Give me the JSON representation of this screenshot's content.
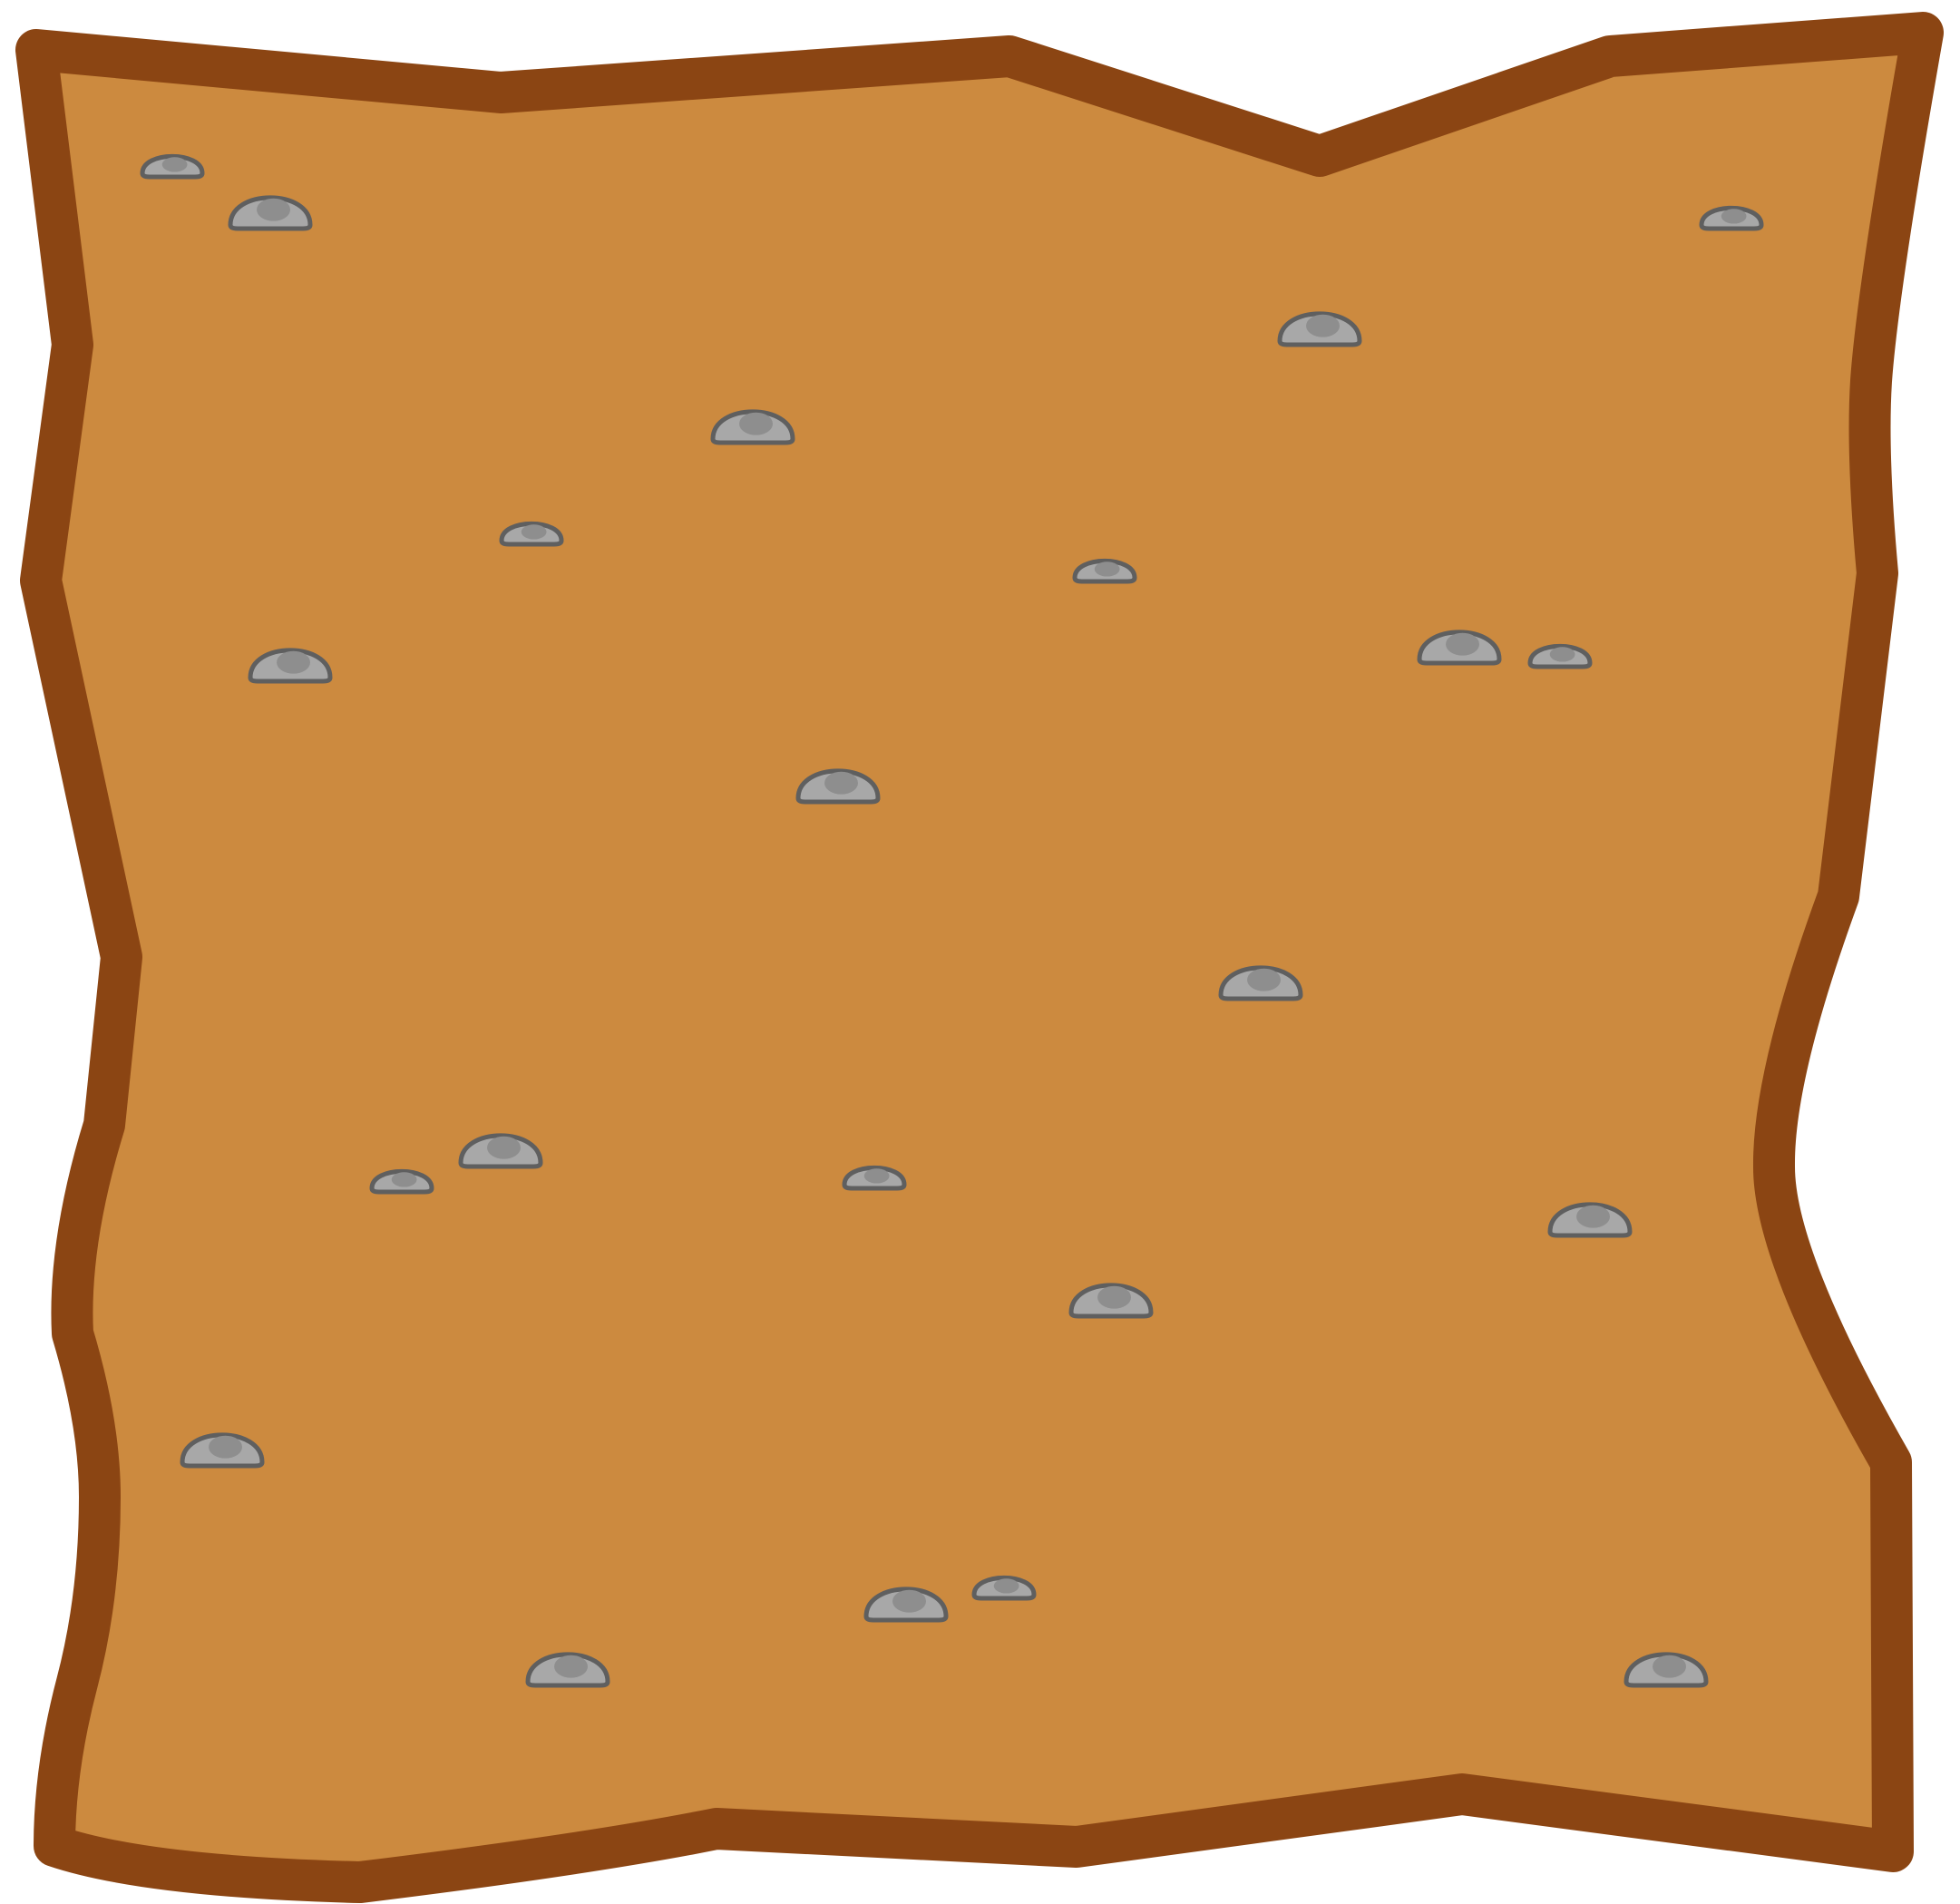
{
  "tile": {
    "kind": "dirt-ground-tile",
    "fill_color": "#CC8A3F",
    "outline_color": "#8B4513"
  },
  "pebble_style": {
    "fill_color": "#A8A8A8",
    "highlight_color": "#8E8E8E",
    "outline_color": "#5F5F5F"
  },
  "pebbles": [
    {
      "size": "small"
    },
    {
      "size": "large"
    },
    {
      "size": "small"
    },
    {
      "size": "large"
    },
    {
      "size": "large"
    },
    {
      "size": "small"
    },
    {
      "size": "small"
    },
    {
      "size": "large"
    },
    {
      "size": "large"
    },
    {
      "size": "small"
    },
    {
      "size": "large"
    },
    {
      "size": "large"
    },
    {
      "size": "large"
    },
    {
      "size": "small"
    },
    {
      "size": "small"
    },
    {
      "size": "large"
    },
    {
      "size": "large"
    },
    {
      "size": "large"
    },
    {
      "size": "large"
    },
    {
      "size": "small"
    },
    {
      "size": "large"
    },
    {
      "size": "large"
    }
  ]
}
